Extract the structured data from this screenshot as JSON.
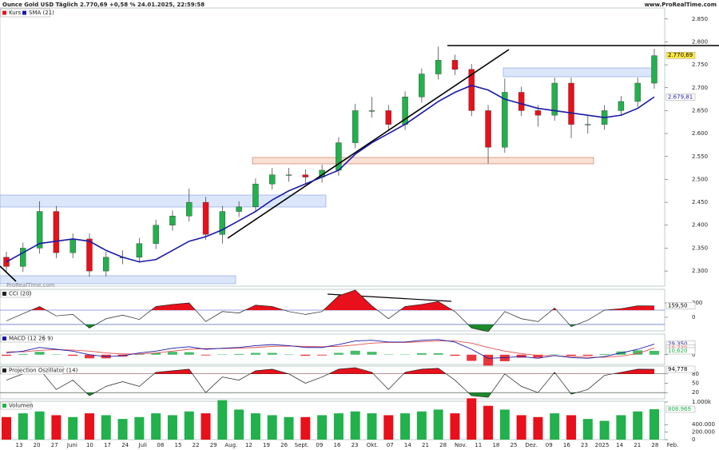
{
  "chart_data": {
    "type": "candlestick",
    "title": "Ounce Gold USD Täglich 2.770,69 +0,58 % 24.01.2025, 22:59:58",
    "source": "www.ProRealTime.com",
    "watermark": "ProRealTime.com",
    "up_color": "#22b14c",
    "down_color": "#e8101a",
    "price": {
      "name": "Kurs",
      "open": [
        2330,
        2310,
        2350,
        2430,
        2340,
        2370,
        2300,
        2330,
        2330,
        2360,
        2400,
        2420,
        2450,
        2380,
        2430,
        2440,
        2490,
        2510,
        2510,
        2505,
        2520,
        2580,
        2650,
        2650,
        2620,
        2680,
        2730,
        2760,
        2740,
        2650,
        2570,
        2690,
        2650,
        2640,
        2710,
        2620,
        2620,
        2650,
        2670,
        2710
      ],
      "high": [
        2342,
        2362,
        2452,
        2442,
        2382,
        2382,
        2342,
        2345,
        2372,
        2412,
        2432,
        2480,
        2462,
        2442,
        2452,
        2502,
        2525,
        2525,
        2522,
        2532,
        2592,
        2665,
        2680,
        2662,
        2692,
        2742,
        2790,
        2772,
        2752,
        2662,
        2720,
        2702,
        2662,
        2722,
        2722,
        2640,
        2662,
        2682,
        2722,
        2785
      ],
      "low": [
        2298,
        2298,
        2338,
        2328,
        2328,
        2288,
        2288,
        2315,
        2318,
        2348,
        2388,
        2408,
        2368,
        2360,
        2418,
        2428,
        2478,
        2495,
        2490,
        2493,
        2508,
        2568,
        2635,
        2605,
        2608,
        2668,
        2718,
        2728,
        2638,
        2535,
        2558,
        2638,
        2615,
        2628,
        2590,
        2600,
        2608,
        2638,
        2658,
        2698
      ],
      "close": [
        2310,
        2350,
        2430,
        2340,
        2370,
        2300,
        2330,
        2330,
        2360,
        2400,
        2420,
        2450,
        2380,
        2430,
        2440,
        2490,
        2510,
        2510,
        2505,
        2520,
        2580,
        2650,
        2650,
        2620,
        2680,
        2730,
        2760,
        2740,
        2650,
        2570,
        2690,
        2650,
        2640,
        2710,
        2620,
        2620,
        2650,
        2670,
        2710,
        2770
      ]
    },
    "sma": {
      "name": "SMA (21)",
      "color": "#1a1aa8",
      "values": [
        2320,
        2340,
        2360,
        2365,
        2370,
        2365,
        2345,
        2330,
        2320,
        2325,
        2345,
        2365,
        2375,
        2390,
        2410,
        2430,
        2455,
        2475,
        2490,
        2505,
        2520,
        2555,
        2580,
        2600,
        2620,
        2645,
        2670,
        2690,
        2705,
        2695,
        2675,
        2665,
        2655,
        2650,
        2645,
        2640,
        2635,
        2640,
        2655,
        2680
      ]
    },
    "last_price": {
      "value": 2770.69,
      "label": "2.770,69"
    },
    "sma_last": {
      "value": 2679.81,
      "label": "2.679,81"
    },
    "ylim": [
      2267,
      2874
    ],
    "yticks": [
      {
        "value": 2300,
        "label": "2.300"
      },
      {
        "value": 2350,
        "label": "2.350"
      },
      {
        "value": 2400,
        "label": "2.400"
      },
      {
        "value": 2450,
        "label": "2.450"
      },
      {
        "value": 2500,
        "label": "2.500"
      },
      {
        "value": 2550,
        "label": "2.550"
      },
      {
        "value": 2600,
        "label": "2.600"
      },
      {
        "value": 2650,
        "label": "2.650"
      },
      {
        "value": 2700,
        "label": "2.700"
      },
      {
        "value": 2750,
        "label": "2.750"
      },
      {
        "value": 2800,
        "label": "2.800"
      },
      {
        "value": 2850,
        "label": "2.850"
      }
    ],
    "categories": [
      "13",
      "20",
      "27",
      "Juni",
      "10",
      "17",
      "24",
      "Juli",
      "08",
      "15",
      "22",
      "29",
      "Aug.",
      "12",
      "19",
      "26",
      "Sept.",
      "09",
      "16",
      "23",
      "Okt.",
      "07",
      "14",
      "21",
      "28",
      "Nov.",
      "11",
      "18",
      "25",
      "Dez.",
      "09",
      "16",
      "23",
      "2025",
      "14",
      "21",
      "28",
      "Feb."
    ],
    "cci": {
      "name": "CCI (20)",
      "color": "#222222",
      "values": [
        -50,
        50,
        150,
        20,
        40,
        -150,
        -20,
        30,
        -30,
        150,
        180,
        200,
        -60,
        80,
        60,
        170,
        150,
        80,
        40,
        80,
        300,
        380,
        160,
        -20,
        150,
        180,
        220,
        80,
        -150,
        -200,
        80,
        -20,
        -60,
        130,
        -130,
        -40,
        100,
        120,
        160,
        159.5
      ],
      "levels": [
        100,
        -100
      ],
      "ylim": [
        -190,
        390
      ],
      "yticks": [
        200,
        0
      ],
      "last": {
        "value": 159.5,
        "label": "159,50"
      }
    },
    "macd": {
      "name": "MACD (12 26 9)",
      "macd_color": "#1a1aa8",
      "signal_color": "#e05050",
      "macd": [
        5,
        10,
        20,
        15,
        10,
        0,
        -5,
        -3,
        5,
        10,
        18,
        22,
        15,
        18,
        20,
        25,
        28,
        25,
        20,
        20,
        28,
        38,
        40,
        35,
        35,
        40,
        42,
        35,
        15,
        -10,
        -8,
        -5,
        -10,
        -2,
        -8,
        -10,
        -5,
        5,
        15,
        29.35
      ],
      "signal": [
        8,
        8,
        12,
        14,
        13,
        10,
        5,
        2,
        2,
        5,
        10,
        15,
        17,
        17,
        18,
        20,
        23,
        24,
        23,
        22,
        23,
        27,
        32,
        34,
        34,
        36,
        38,
        38,
        32,
        20,
        10,
        3,
        -2,
        -3,
        -5,
        -7,
        -7,
        -4,
        3,
        18.73
      ],
      "histogram": [
        -3,
        2,
        8,
        1,
        -3,
        -10,
        -10,
        -5,
        3,
        5,
        8,
        7,
        -2,
        1,
        2,
        5,
        5,
        1,
        -3,
        -2,
        5,
        11,
        8,
        1,
        1,
        4,
        4,
        -3,
        -17,
        -30,
        -18,
        -8,
        -8,
        1,
        -3,
        -3,
        2,
        9,
        12,
        10.62
      ],
      "ylim": [
        -27,
        57
      ],
      "yticks": [
        0
      ],
      "last": [
        {
          "value": 29.35,
          "label": "29,350"
        },
        {
          "value": 18.73,
          "label": "18,730"
        },
        {
          "value": 10.62,
          "label": "10,620"
        }
      ]
    },
    "projection": {
      "name": "Projection Oszillator (14)",
      "color": "#222222",
      "values": [
        60,
        80,
        95,
        30,
        60,
        10,
        40,
        55,
        40,
        85,
        90,
        95,
        20,
        70,
        60,
        90,
        95,
        80,
        50,
        70,
        95,
        100,
        85,
        30,
        85,
        95,
        98,
        60,
        10,
        5,
        80,
        40,
        20,
        85,
        15,
        30,
        75,
        85,
        95,
        94.778
      ],
      "levels": [
        80,
        20
      ],
      "ylim": [
        0,
        105
      ],
      "yticks": [
        80,
        50,
        20
      ],
      "last": {
        "value": 94.778,
        "label": "94,778"
      }
    },
    "volume": {
      "name": "Volumen",
      "values": [
        600000,
        700000,
        750000,
        650000,
        600000,
        700000,
        650000,
        550000,
        600000,
        700000,
        650000,
        750000,
        700000,
        1050000,
        800000,
        700000,
        650000,
        600000,
        600000,
        650000,
        700000,
        750000,
        700000,
        650000,
        700000,
        750000,
        800000,
        700000,
        1100000,
        900000,
        800000,
        650000,
        600000,
        700000,
        650000,
        550000,
        500000,
        650000,
        750000,
        808969
      ],
      "ylim": [
        0,
        1000000
      ],
      "yticks": [
        {
          "value": 0,
          "label": "0"
        },
        {
          "value": 200000,
          "label": "200.000"
        },
        {
          "value": 400000,
          "label": "400.000"
        },
        {
          "value": 1000000,
          "label": "1.000k"
        }
      ],
      "last": {
        "value": 808969,
        "label": "808.969"
      }
    }
  }
}
